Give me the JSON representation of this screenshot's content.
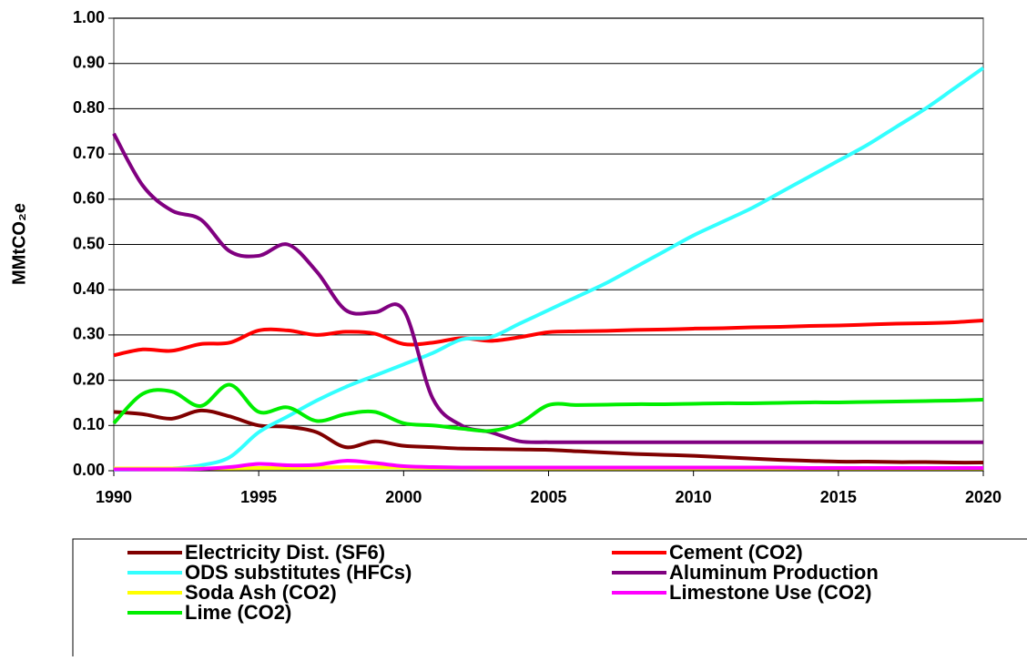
{
  "chart_data": {
    "type": "line",
    "y_label": "MMtCO₂e",
    "x": [
      1990,
      1991,
      1992,
      1993,
      1994,
      1995,
      1996,
      1997,
      1998,
      1999,
      2000,
      2001,
      2002,
      2003,
      2004,
      2005,
      2006,
      2007,
      2008,
      2009,
      2010,
      2011,
      2012,
      2013,
      2014,
      2015,
      2016,
      2017,
      2018,
      2019,
      2020
    ],
    "xlim": [
      1990,
      2020
    ],
    "xticks": [
      1990,
      1995,
      2000,
      2005,
      2010,
      2015,
      2020
    ],
    "ylim": [
      0,
      1
    ],
    "yticks": [
      {
        "value": 0,
        "label": "0.00"
      },
      {
        "value": 0.1,
        "label": "0.10"
      },
      {
        "value": 0.2,
        "label": "0.20"
      },
      {
        "value": 0.3,
        "label": "0.30"
      },
      {
        "value": 0.4,
        "label": "0.40"
      },
      {
        "value": 0.5,
        "label": "0.50"
      },
      {
        "value": 0.6,
        "label": "0.60"
      },
      {
        "value": 0.7,
        "label": "0.70"
      },
      {
        "value": 0.8,
        "label": "0.80"
      },
      {
        "value": 0.9,
        "label": "0.90"
      },
      {
        "value": 1,
        "label": "1.00"
      }
    ],
    "grid": true,
    "legend": "bottom",
    "series": [
      {
        "name": "Electricity Dist. (SF6)",
        "color": "#800000",
        "values": [
          0.13,
          0.125,
          0.115,
          0.133,
          0.12,
          0.1,
          0.097,
          0.085,
          0.052,
          0.065,
          0.055,
          0.052,
          0.049,
          0.048,
          0.047,
          0.046,
          0.043,
          0.04,
          0.037,
          0.035,
          0.033,
          0.03,
          0.027,
          0.024,
          0.022,
          0.02,
          0.02,
          0.019,
          0.019,
          0.018,
          0.018
        ]
      },
      {
        "name": "Cement (CO2)",
        "color": "#ff0000",
        "values": [
          0.255,
          0.268,
          0.265,
          0.28,
          0.283,
          0.31,
          0.31,
          0.3,
          0.307,
          0.303,
          0.28,
          0.283,
          0.293,
          0.287,
          0.295,
          0.306,
          0.308,
          0.309,
          0.311,
          0.312,
          0.314,
          0.315,
          0.317,
          0.318,
          0.32,
          0.321,
          0.323,
          0.325,
          0.326,
          0.328,
          0.332
        ]
      },
      {
        "name": "ODS substitutes (HFCs)",
        "color": "#33ffff",
        "values": [
          0.002,
          0.003,
          0.005,
          0.012,
          0.03,
          0.085,
          0.12,
          0.155,
          0.185,
          0.21,
          0.235,
          0.26,
          0.29,
          0.295,
          0.325,
          0.355,
          0.385,
          0.415,
          0.45,
          0.485,
          0.52,
          0.55,
          0.58,
          0.615,
          0.65,
          0.685,
          0.72,
          0.76,
          0.8,
          0.845,
          0.89
        ]
      },
      {
        "name": "Aluminum Production",
        "color": "#800080",
        "values": [
          0.745,
          0.63,
          0.575,
          0.555,
          0.485,
          0.475,
          0.5,
          0.44,
          0.355,
          0.35,
          0.355,
          0.16,
          0.1,
          0.085,
          0.065,
          0.063,
          0.063,
          0.063,
          0.063,
          0.063,
          0.063,
          0.063,
          0.063,
          0.063,
          0.063,
          0.063,
          0.063,
          0.063,
          0.063,
          0.063,
          0.063
        ]
      },
      {
        "name": "Soda Ash (CO2)",
        "color": "#ffff00",
        "values": [
          0.005,
          0.005,
          0.005,
          0.005,
          0.005,
          0.006,
          0.006,
          0.007,
          0.008,
          0.008,
          0.007,
          0.006,
          0.006,
          0.005,
          0.005,
          0.005,
          0.005,
          0.005,
          0.005,
          0.005,
          0.005,
          0.005,
          0.005,
          0.005,
          0.005,
          0.005,
          0.005,
          0.005,
          0.005,
          0.005,
          0.005
        ]
      },
      {
        "name": "Limestone Use (CO2)",
        "color": "#ff00ff",
        "values": [
          0.003,
          0.003,
          0.003,
          0.004,
          0.008,
          0.015,
          0.012,
          0.013,
          0.022,
          0.017,
          0.01,
          0.008,
          0.007,
          0.007,
          0.007,
          0.007,
          0.007,
          0.007,
          0.007,
          0.007,
          0.007,
          0.007,
          0.007,
          0.007,
          0.006,
          0.006,
          0.006,
          0.006,
          0.006,
          0.006,
          0.006
        ]
      },
      {
        "name": "Lime (CO2)",
        "color": "#00ee00",
        "values": [
          0.105,
          0.17,
          0.175,
          0.143,
          0.19,
          0.13,
          0.14,
          0.11,
          0.125,
          0.13,
          0.105,
          0.1,
          0.093,
          0.088,
          0.105,
          0.145,
          0.145,
          0.146,
          0.147,
          0.147,
          0.148,
          0.149,
          0.149,
          0.15,
          0.151,
          0.151,
          0.152,
          0.153,
          0.154,
          0.155,
          0.157
        ]
      }
    ]
  }
}
